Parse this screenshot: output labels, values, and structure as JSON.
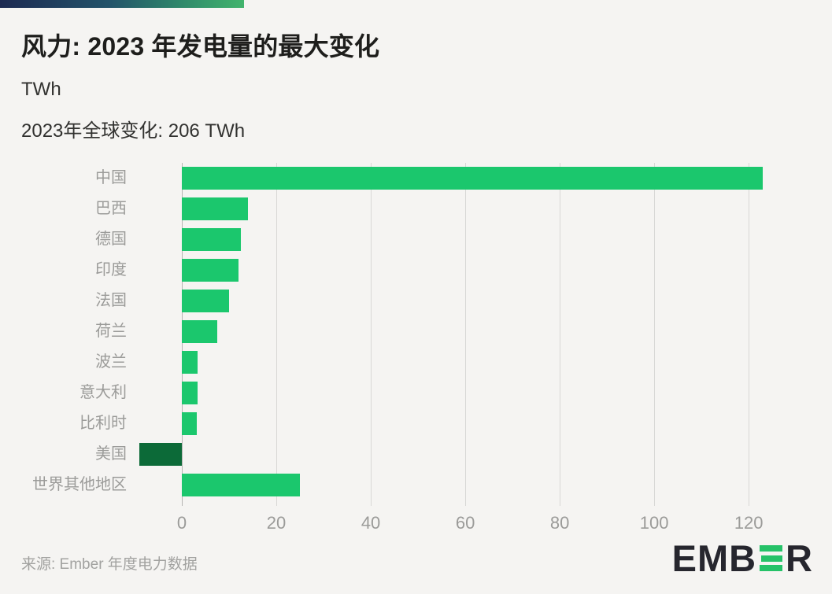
{
  "page": {
    "background": "#f5f4f2"
  },
  "header": {
    "title": "风力: 2023 年发电量的最大变化",
    "unit": "TWh",
    "annotation": "2023年全球变化: 206 TWh"
  },
  "chart_data": {
    "type": "bar",
    "orientation": "horizontal",
    "title": "风力: 2023 年发电量的最大变化",
    "unit": "TWh",
    "annotation": "2023年全球变化: 206 TWh",
    "categories": [
      "中国",
      "巴西",
      "德国",
      "印度",
      "法国",
      "荷兰",
      "波兰",
      "意大利",
      "比利时",
      "美国",
      "世界其他地区"
    ],
    "values": [
      123,
      14,
      12.5,
      12,
      10,
      7.5,
      3.4,
      3.3,
      3.1,
      -9,
      25
    ],
    "x_ticks": [
      0,
      20,
      40,
      60,
      80,
      100,
      120
    ],
    "xlim": [
      -10,
      133.3
    ],
    "grid": true,
    "positive_color": "#1bc76d",
    "negative_color": "#0c6a38",
    "gridline_color": "#d8d8d6",
    "zero_line_color": "#b5b5b3"
  },
  "footer": {
    "source": "来源: Ember 年度电力数据",
    "logo_part1": "EMB",
    "logo_part2": "R",
    "logo_name": "EMBER",
    "logo_green": "#25c268"
  }
}
